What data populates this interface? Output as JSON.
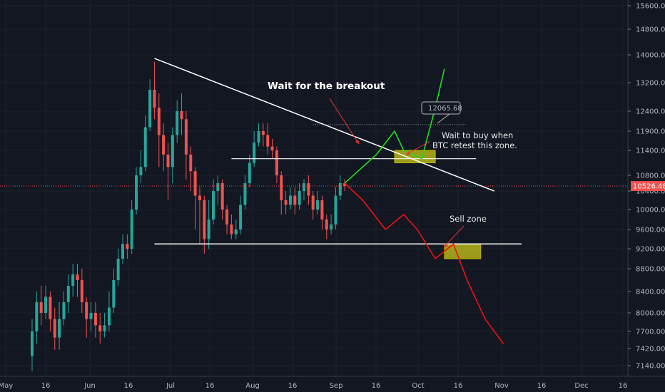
{
  "chart_data": {
    "type": "candlestick",
    "symbol_context": "BTC",
    "ylim": [
      6980,
      15800
    ],
    "y_ticks": [
      "15600.00",
      "14800.00",
      "14000.00",
      "13200.00",
      "12400.00",
      "11900.00",
      "11400.00",
      "10800.00",
      "10400.00",
      "10000.00",
      "9600.00",
      "9200.00",
      "8800.00",
      "8400.00",
      "8000.00",
      "7700.00",
      "7420.00",
      "7140.00"
    ],
    "x_ticks": [
      "May",
      "16",
      "Jun",
      "16",
      "Jul",
      "16",
      "Aug",
      "16",
      "Sep",
      "16",
      "Oct",
      "16",
      "Nov",
      "16",
      "Dec",
      "16"
    ],
    "current_price": "10526.48",
    "candles": [
      [
        7300,
        7700,
        7050,
        7900
      ],
      [
        7700,
        8200,
        7500,
        8400
      ],
      [
        8200,
        8000,
        7800,
        8500
      ],
      [
        8000,
        8300,
        7900,
        8500
      ],
      [
        8300,
        7900,
        7700,
        8400
      ],
      [
        7900,
        7600,
        7400,
        8100
      ],
      [
        7600,
        7900,
        7400,
        8200
      ],
      [
        7900,
        8200,
        7800,
        8400
      ],
      [
        8200,
        8500,
        8000,
        8700
      ],
      [
        8500,
        8700,
        8300,
        8900
      ],
      [
        8700,
        8600,
        8300,
        8900
      ],
      [
        8600,
        8200,
        8000,
        8800
      ],
      [
        8200,
        7900,
        7600,
        8300
      ],
      [
        7900,
        8000,
        7700,
        8200
      ],
      [
        8000,
        7800,
        7600,
        8200
      ],
      [
        7800,
        7700,
        7500,
        8000
      ],
      [
        7700,
        7800,
        7600,
        8000
      ],
      [
        7800,
        8100,
        7700,
        8400
      ],
      [
        8100,
        8600,
        8000,
        8800
      ],
      [
        8600,
        9000,
        8500,
        9200
      ],
      [
        9000,
        9300,
        8900,
        9500
      ],
      [
        9300,
        9200,
        9000,
        9500
      ],
      [
        9200,
        10000,
        9100,
        10200
      ],
      [
        10000,
        10800,
        9900,
        11000
      ],
      [
        10800,
        11000,
        10600,
        11400
      ],
      [
        11000,
        12000,
        10900,
        12300
      ],
      [
        12000,
        13000,
        11900,
        13300
      ],
      [
        13000,
        12500,
        12200,
        13800
      ],
      [
        12500,
        11800,
        11000,
        12900
      ],
      [
        11800,
        11300,
        10900,
        12100
      ],
      [
        11300,
        11000,
        10200,
        11600
      ],
      [
        11000,
        11800,
        10600,
        12000
      ],
      [
        11800,
        12400,
        11600,
        12700
      ],
      [
        12400,
        12200,
        11800,
        12900
      ],
      [
        12200,
        11300,
        10700,
        12400
      ],
      [
        11300,
        10900,
        10400,
        11500
      ],
      [
        10900,
        10300,
        9600,
        11000
      ],
      [
        10300,
        10200,
        9300,
        10500
      ],
      [
        10200,
        9400,
        9100,
        10300
      ],
      [
        9400,
        9800,
        9200,
        10200
      ],
      [
        9800,
        10400,
        9700,
        10700
      ],
      [
        10400,
        10600,
        10100,
        10800
      ],
      [
        10600,
        10000,
        9800,
        10700
      ],
      [
        10000,
        9700,
        9500,
        10100
      ],
      [
        9700,
        9500,
        9400,
        9900
      ],
      [
        9500,
        9600,
        9400,
        9800
      ],
      [
        9600,
        10100,
        9500,
        10300
      ],
      [
        10100,
        10600,
        10000,
        10800
      ],
      [
        10600,
        11100,
        10500,
        11300
      ],
      [
        11100,
        11600,
        11000,
        11900
      ],
      [
        11600,
        11900,
        11500,
        12100
      ],
      [
        11900,
        11800,
        11500,
        12100
      ],
      [
        11800,
        11500,
        11300,
        12100
      ],
      [
        11500,
        11400,
        11200,
        11700
      ],
      [
        11400,
        10800,
        10600,
        11500
      ],
      [
        10800,
        10200,
        9900,
        10900
      ],
      [
        10200,
        10100,
        9900,
        10400
      ],
      [
        10100,
        10300,
        10000,
        10500
      ],
      [
        10300,
        10100,
        9900,
        10500
      ],
      [
        10100,
        10400,
        10000,
        10600
      ],
      [
        10400,
        10600,
        10200,
        10700
      ],
      [
        10600,
        10300,
        10100,
        10800
      ],
      [
        10300,
        10000,
        9800,
        10400
      ],
      [
        10000,
        10200,
        9900,
        10400
      ],
      [
        10200,
        9800,
        9600,
        10300
      ],
      [
        9800,
        9600,
        9400,
        9900
      ],
      [
        9600,
        9700,
        9500,
        9900
      ],
      [
        9700,
        10300,
        9600,
        10500
      ],
      [
        10300,
        10600,
        10200,
        10800
      ],
      [
        10600,
        10526,
        10400,
        10700
      ]
    ],
    "trendline_upper": [
      [
        27,
        13900
      ],
      [
        102,
        10400
      ]
    ],
    "resistance_line": [
      [
        44,
        11200
      ],
      [
        98,
        11200
      ]
    ],
    "support_line": [
      [
        27,
        9300
      ],
      [
        108,
        9300
      ]
    ],
    "dotted_level": [
      [
        62,
        12065.68
      ],
      [
        96,
        12065.68
      ]
    ],
    "level_label": "12065.68",
    "bullish_path": [
      [
        69,
        10600
      ],
      [
        76,
        11300
      ],
      [
        80,
        11900
      ],
      [
        82,
        11400
      ],
      [
        86,
        11200
      ],
      [
        89,
        12500
      ],
      [
        91,
        13600
      ]
    ],
    "bearish_path": [
      [
        69,
        10600
      ],
      [
        73,
        10200
      ],
      [
        78,
        9600
      ],
      [
        82,
        9900
      ],
      [
        85,
        9600
      ],
      [
        89,
        9000
      ],
      [
        93,
        9300
      ],
      [
        96,
        8600
      ],
      [
        100,
        7900
      ],
      [
        104,
        7500
      ]
    ],
    "buy_zone": {
      "from": 80,
      "to": 89,
      "low": 11100,
      "high": 11400
    },
    "sell_zone": {
      "from": 91,
      "to": 99,
      "low": 9000,
      "high": 9300
    },
    "annotations": {
      "title": "Wait for the breakout",
      "buy_text_1": "Wait to buy when",
      "buy_text_2": "BTC retest this zone.",
      "sell_text": "Sell zone"
    },
    "colors": {
      "background": "#131722",
      "up": "#26a69a",
      "down": "#ef5350",
      "zone": "#c9c918",
      "bullish": "#22dd22",
      "bearish": "#ee1111"
    }
  }
}
